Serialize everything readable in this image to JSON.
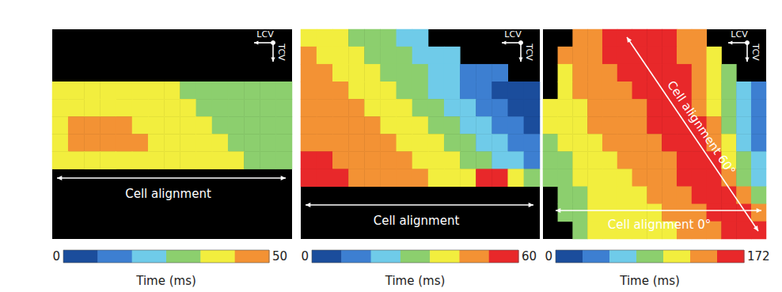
{
  "chart_data": [
    {
      "type": "heatmap",
      "tick_labels": false,
      "direction_labels": [
        "LCV",
        "TCV"
      ],
      "alignment_labels": [
        "Cell alignment"
      ],
      "colorbar": {
        "range": [
          0,
          50
        ],
        "ticks": [
          0,
          50
        ],
        "label": "Time (ms)",
        "colors": [
          "#1b4d9c",
          "#3d7fd1",
          "#6fcbe9",
          "#8ccf6e",
          "#f2ee3e",
          "#f39234"
        ]
      },
      "cells": [
        [
          null,
          null,
          null,
          null,
          null,
          null,
          null,
          null,
          null,
          null,
          null,
          null,
          null,
          null,
          null
        ],
        [
          null,
          null,
          null,
          null,
          null,
          null,
          null,
          null,
          null,
          null,
          null,
          null,
          null,
          null,
          null
        ],
        [
          null,
          null,
          null,
          null,
          null,
          null,
          null,
          null,
          null,
          null,
          null,
          null,
          null,
          null,
          null
        ],
        [
          38,
          38,
          38,
          38,
          38,
          38,
          38,
          38,
          29,
          29,
          29,
          29,
          29,
          29,
          29
        ],
        [
          38,
          38,
          38,
          38,
          38,
          38,
          38,
          38,
          38,
          29,
          29,
          29,
          29,
          29,
          29
        ],
        [
          38,
          45,
          45,
          45,
          45,
          38,
          38,
          38,
          38,
          38,
          29,
          29,
          29,
          29,
          29
        ],
        [
          38,
          45,
          45,
          45,
          45,
          45,
          38,
          38,
          38,
          38,
          38,
          29,
          29,
          29,
          29
        ],
        [
          38,
          38,
          38,
          38,
          38,
          38,
          38,
          38,
          38,
          38,
          38,
          38,
          29,
          29,
          29
        ],
        [
          null,
          null,
          null,
          null,
          null,
          null,
          null,
          null,
          null,
          null,
          null,
          null,
          null,
          null,
          null
        ],
        [
          null,
          null,
          null,
          null,
          null,
          null,
          null,
          null,
          null,
          null,
          null,
          null,
          null,
          null,
          null
        ],
        [
          null,
          null,
          null,
          null,
          null,
          null,
          null,
          null,
          null,
          null,
          null,
          null,
          null,
          null,
          null
        ],
        [
          null,
          null,
          null,
          null,
          null,
          null,
          null,
          null,
          null,
          null,
          null,
          null,
          null,
          null,
          null
        ]
      ]
    },
    {
      "type": "heatmap",
      "tick_labels": false,
      "direction_labels": [
        "LCV",
        "TCV"
      ],
      "alignment_labels": [
        "Cell alignment"
      ],
      "colorbar": {
        "range": [
          0,
          60
        ],
        "ticks": [
          0,
          60
        ],
        "label": "Time (ms)",
        "colors": [
          "#1b4d9c",
          "#3d7fd1",
          "#6fcbe9",
          "#8ccf6e",
          "#f2ee3e",
          "#f39234",
          "#e8282a"
        ]
      },
      "cells": [
        [
          38,
          38,
          38,
          30,
          30,
          30,
          21,
          21,
          null,
          null,
          null,
          null,
          null,
          null,
          null
        ],
        [
          47,
          38,
          38,
          38,
          30,
          30,
          30,
          21,
          21,
          21,
          null,
          null,
          null,
          null,
          null
        ],
        [
          47,
          47,
          38,
          38,
          38,
          30,
          30,
          30,
          21,
          21,
          13,
          13,
          13,
          null,
          null
        ],
        [
          47,
          47,
          47,
          38,
          38,
          38,
          30,
          30,
          21,
          21,
          13,
          13,
          4,
          4,
          4
        ],
        [
          47,
          47,
          47,
          47,
          38,
          38,
          38,
          30,
          30,
          21,
          21,
          13,
          13,
          4,
          4
        ],
        [
          47,
          47,
          47,
          47,
          47,
          38,
          38,
          38,
          30,
          30,
          21,
          21,
          13,
          13,
          4
        ],
        [
          47,
          47,
          47,
          47,
          47,
          47,
          38,
          38,
          38,
          30,
          30,
          21,
          21,
          13,
          13
        ],
        [
          56,
          56,
          47,
          47,
          47,
          47,
          47,
          38,
          38,
          38,
          30,
          30,
          21,
          21,
          13
        ],
        [
          56,
          56,
          56,
          47,
          47,
          47,
          47,
          47,
          38,
          38,
          38,
          56,
          56,
          38,
          30
        ],
        [
          null,
          null,
          null,
          null,
          null,
          null,
          null,
          null,
          null,
          null,
          null,
          null,
          null,
          null,
          null
        ],
        [
          null,
          null,
          null,
          null,
          null,
          null,
          null,
          null,
          null,
          null,
          null,
          null,
          null,
          null,
          null
        ],
        [
          null,
          null,
          null,
          null,
          null,
          null,
          null,
          null,
          null,
          null,
          null,
          null,
          null,
          null,
          null
        ]
      ]
    },
    {
      "type": "heatmap",
      "tick_labels": false,
      "direction_labels": [
        "LCV",
        "TCV"
      ],
      "alignment_labels": [
        "Cell alignment 60°",
        "Cell alignment 0°"
      ],
      "colorbar": {
        "range": [
          0,
          172
        ],
        "ticks": [
          0,
          172
        ],
        "label": "Time (ms)",
        "colors": [
          "#1b4d9c",
          "#3d7fd1",
          "#6fcbe9",
          "#8ccf6e",
          "#f2ee3e",
          "#f39234",
          "#e8282a"
        ]
      },
      "cells": [
        [
          null,
          null,
          135,
          135,
          160,
          160,
          160,
          160,
          160,
          135,
          135,
          null,
          null,
          null,
          null
        ],
        [
          null,
          135,
          135,
          135,
          160,
          160,
          160,
          160,
          160,
          135,
          135,
          110,
          null,
          null,
          null
        ],
        [
          null,
          110,
          135,
          135,
          135,
          160,
          160,
          160,
          160,
          160,
          135,
          110,
          86,
          null,
          null
        ],
        [
          null,
          110,
          135,
          135,
          135,
          135,
          160,
          160,
          160,
          160,
          135,
          110,
          86,
          61,
          37
        ],
        [
          110,
          110,
          110,
          135,
          135,
          135,
          135,
          160,
          160,
          160,
          135,
          110,
          86,
          61,
          37
        ],
        [
          110,
          110,
          110,
          135,
          135,
          135,
          135,
          160,
          160,
          160,
          160,
          135,
          86,
          61,
          37
        ],
        [
          86,
          110,
          110,
          110,
          135,
          135,
          135,
          135,
          160,
          160,
          160,
          135,
          110,
          61,
          37
        ],
        [
          86,
          86,
          110,
          110,
          110,
          135,
          135,
          135,
          135,
          160,
          160,
          160,
          110,
          86,
          61
        ],
        [
          86,
          86,
          110,
          110,
          110,
          110,
          135,
          135,
          135,
          160,
          160,
          160,
          135,
          86,
          61
        ],
        [
          null,
          86,
          86,
          110,
          110,
          110,
          110,
          135,
          135,
          135,
          160,
          160,
          160,
          135,
          86
        ],
        [
          null,
          86,
          86,
          110,
          110,
          110,
          110,
          110,
          135,
          135,
          135,
          160,
          160,
          160,
          135
        ],
        [
          null,
          null,
          86,
          110,
          110,
          110,
          110,
          110,
          110,
          135,
          135,
          135,
          160,
          160,
          160
        ]
      ]
    }
  ]
}
